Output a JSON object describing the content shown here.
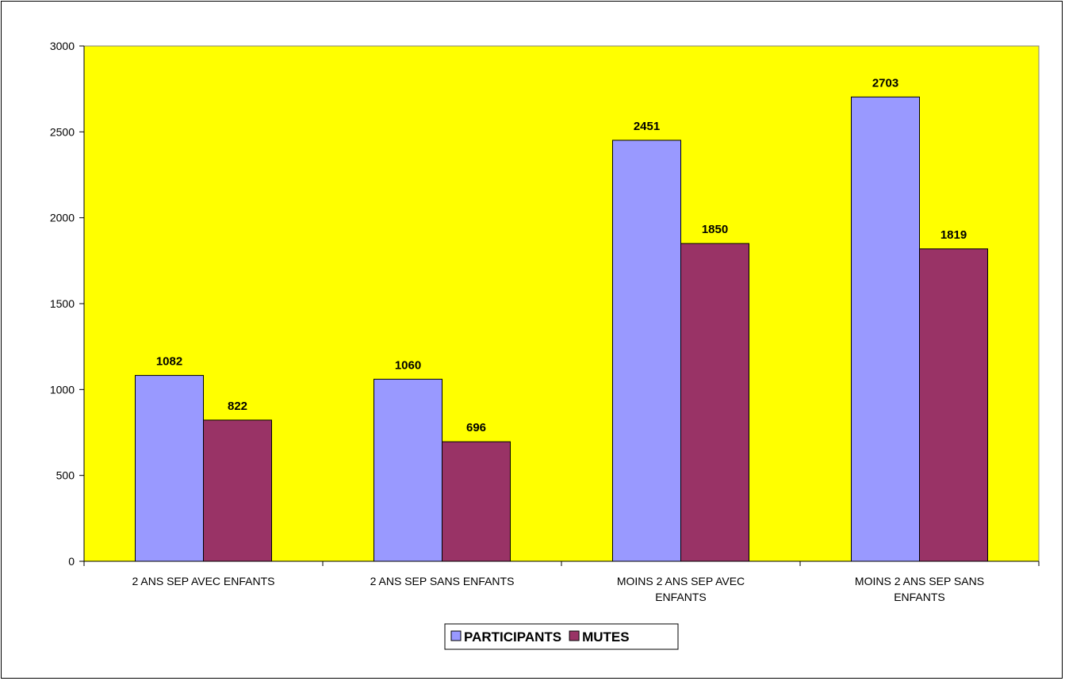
{
  "chart_data": {
    "type": "bar",
    "categories": [
      [
        "2 ANS SEP AVEC ENFANTS"
      ],
      [
        "2 ANS SEP SANS ENFANTS"
      ],
      [
        "MOINS 2 ANS SEP AVEC",
        "ENFANTS"
      ],
      [
        "MOINS 2 ANS SEP SANS",
        "ENFANTS"
      ]
    ],
    "series": [
      {
        "name": "PARTICIPANTS",
        "values": [
          1082,
          1060,
          2451,
          2703
        ],
        "color": "#9999FF"
      },
      {
        "name": "MUTES",
        "values": [
          822,
          696,
          1850,
          1819
        ],
        "color": "#993366"
      }
    ],
    "ylim": [
      0,
      3000
    ],
    "yticks": [
      0,
      500,
      1000,
      1500,
      2000,
      2500,
      3000
    ],
    "plot_background": "#FFFF00",
    "grid": false,
    "legend_position": "bottom",
    "data_labels": true
  }
}
